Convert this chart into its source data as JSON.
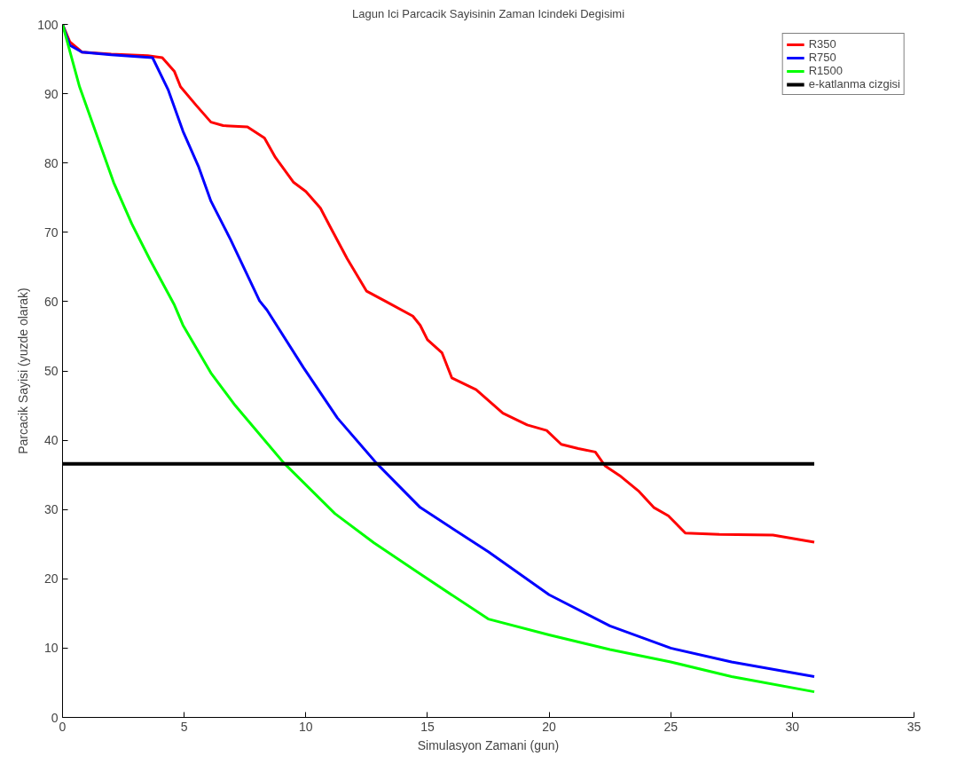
{
  "chart_data": {
    "type": "line",
    "title": "Lagun Ici Parcacik Sayisinin Zaman Icindeki Degisimi",
    "xlabel": "Simulasyon Zamani (gun)",
    "ylabel": "Parcacik Sayisi (yuzde olarak)",
    "xlim": [
      0,
      35
    ],
    "ylim": [
      0,
      100
    ],
    "xticks": [
      0,
      5,
      10,
      15,
      20,
      25,
      30,
      35
    ],
    "yticks": [
      0,
      10,
      20,
      30,
      40,
      50,
      60,
      70,
      80,
      90,
      100
    ],
    "grid": false,
    "legend": "top right",
    "line_style": "solid",
    "series": [
      {
        "name": "R350",
        "color": "#ff0000",
        "x": [
          0,
          0.3,
          0.8,
          2,
          3.5,
          4.1,
          4.6,
          4.85,
          5.5,
          6.1,
          6.6,
          7.6,
          8.3,
          8.75,
          9.5,
          10.0,
          10.6,
          11.0,
          11.7,
          12.5,
          13.3,
          14.4,
          14.7,
          15.0,
          15.6,
          16.0,
          17.0,
          18.1,
          19.1,
          19.9,
          20.5,
          21.2,
          21.9,
          22.3,
          22.9,
          23.7,
          24.3,
          24.9,
          25.6,
          27,
          29.2,
          30.9
        ],
        "values": [
          100,
          97.5,
          96,
          95.7,
          95.5,
          95.2,
          93.2,
          91,
          88.3,
          85.9,
          85.4,
          85.2,
          83.6,
          80.8,
          77.2,
          75.9,
          73.5,
          70.8,
          66.2,
          61.5,
          60,
          57.9,
          56.6,
          54.5,
          52.6,
          49,
          47.3,
          43.9,
          42.2,
          41.4,
          39.4,
          38.8,
          38.3,
          36.3,
          34.9,
          32.6,
          30.3,
          29.1,
          26.6,
          26.4,
          26.3,
          25.3
        ]
      },
      {
        "name": "R750",
        "color": "#0000ff",
        "x": [
          0,
          0.3,
          0.8,
          2,
          3.7,
          4.35,
          4.95,
          5.6,
          6.1,
          6.9,
          8.1,
          8.4,
          9.9,
          11.3,
          12.9,
          14.7,
          17.5,
          20,
          22.5,
          25,
          27.5,
          30.9
        ],
        "values": [
          100,
          97,
          96,
          95.6,
          95.2,
          90.5,
          84.6,
          79.4,
          74.5,
          69,
          60.1,
          58.8,
          50.5,
          43.2,
          36.7,
          30.3,
          23.9,
          17.7,
          13.2,
          10,
          8,
          5.9
        ]
      },
      {
        "name": "R1500",
        "color": "#00ff00",
        "x": [
          0,
          0.7,
          1.45,
          2.1,
          2.85,
          3.6,
          4.6,
          4.95,
          6.1,
          7.1,
          9.1,
          11.2,
          12.8,
          14.7,
          17.5,
          20,
          22.5,
          25,
          27.5,
          30.9
        ],
        "values": [
          100,
          91,
          83.6,
          77.2,
          71.2,
          66,
          59.5,
          56.6,
          49.7,
          45,
          36.7,
          29.4,
          25.2,
          20.7,
          14.2,
          11.9,
          9.8,
          8,
          5.9,
          3.7
        ]
      },
      {
        "name": "e-katlanma cizgisi",
        "color": "#000000",
        "x": [
          0,
          30.9
        ],
        "values": [
          36.6,
          36.6
        ]
      }
    ]
  }
}
